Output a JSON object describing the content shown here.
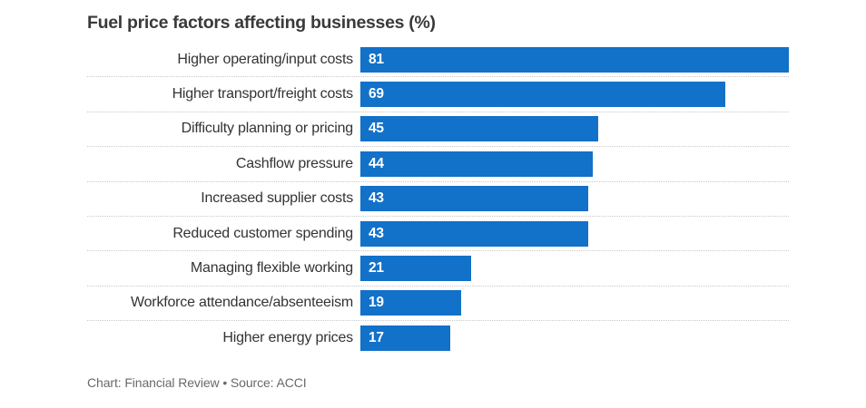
{
  "title": "Fuel price factors affecting businesses (%)",
  "footer": "Chart: Financial Review • Source: ACCI",
  "colors": {
    "bar": "#1271c9",
    "title_text": "#3a3a3a",
    "label_text": "#333333",
    "value_text": "#ffffff",
    "separator": "#c9c9c9",
    "footer_text": "#696969",
    "background": "#ffffff"
  },
  "chart_data": {
    "type": "bar",
    "orientation": "horizontal",
    "title": "Fuel price factors affecting businesses (%)",
    "categories": [
      "Higher operating/input costs",
      "Higher transport/freight costs",
      "Difficulty planning or pricing",
      "Cashflow pressure",
      "Increased supplier costs",
      "Reduced customer spending",
      "Managing flexible working",
      "Workforce attendance/absenteeism",
      "Higher energy prices"
    ],
    "values": [
      81,
      69,
      45,
      44,
      43,
      43,
      21,
      19,
      17
    ],
    "value_labels": "inside bar, left edge, white",
    "xlim": [
      0,
      81
    ],
    "xlabel": "",
    "ylabel": "",
    "grid": "dotted horizontal separators between rows",
    "legend": "none",
    "source_line": "Chart: Financial Review • Source: ACCI"
  }
}
